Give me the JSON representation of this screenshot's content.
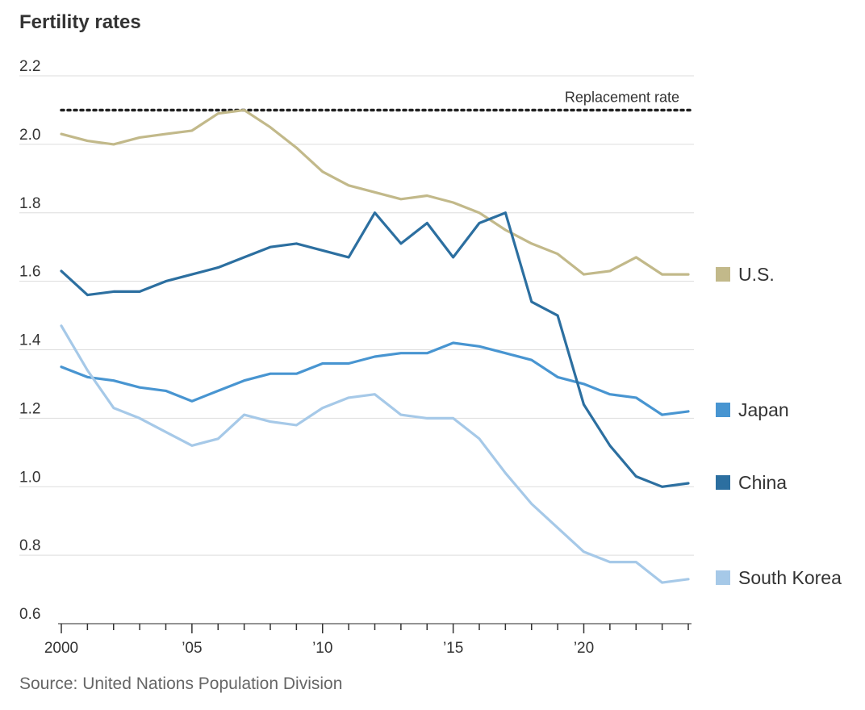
{
  "chart_data": {
    "type": "line",
    "title": "Fertility rates",
    "source": "Source: United Nations Population Division",
    "xlabel": "",
    "ylabel": "",
    "x": [
      2000,
      2001,
      2002,
      2003,
      2004,
      2005,
      2006,
      2007,
      2008,
      2009,
      2010,
      2011,
      2012,
      2013,
      2014,
      2015,
      2016,
      2017,
      2018,
      2019,
      2020,
      2021,
      2022,
      2023,
      2024
    ],
    "xlim": [
      2000,
      2024
    ],
    "ylim": [
      0.6,
      2.2
    ],
    "x_ticks": [
      {
        "value": 2000,
        "label": "2000"
      },
      {
        "value": 2005,
        "label": "’05"
      },
      {
        "value": 2010,
        "label": "’10"
      },
      {
        "value": 2015,
        "label": "’15"
      },
      {
        "value": 2020,
        "label": "’20"
      }
    ],
    "y_ticks": [
      {
        "value": 0.6,
        "label": "0.6"
      },
      {
        "value": 0.8,
        "label": "0.8"
      },
      {
        "value": 1.0,
        "label": "1.0"
      },
      {
        "value": 1.2,
        "label": "1.2"
      },
      {
        "value": 1.4,
        "label": "1.4"
      },
      {
        "value": 1.6,
        "label": "1.6"
      },
      {
        "value": 1.8,
        "label": "1.8"
      },
      {
        "value": 2.0,
        "label": "2.0"
      },
      {
        "value": 2.2,
        "label": "2.2"
      }
    ],
    "grid": true,
    "reference_line": {
      "value": 2.1,
      "label": "Replacement rate"
    },
    "legend_position": "right",
    "series": [
      {
        "name": "U.S.",
        "color": "#c2b98a",
        "values": [
          2.03,
          2.01,
          2.0,
          2.02,
          2.03,
          2.04,
          2.09,
          2.1,
          2.05,
          1.99,
          1.92,
          1.88,
          1.86,
          1.84,
          1.85,
          1.83,
          1.8,
          1.75,
          1.71,
          1.68,
          1.62,
          1.63,
          1.67,
          1.62,
          1.62
        ]
      },
      {
        "name": "Japan",
        "color": "#4895d1",
        "values": [
          1.35,
          1.32,
          1.31,
          1.29,
          1.28,
          1.25,
          1.28,
          1.31,
          1.33,
          1.33,
          1.36,
          1.36,
          1.38,
          1.39,
          1.39,
          1.42,
          1.41,
          1.39,
          1.37,
          1.32,
          1.3,
          1.27,
          1.26,
          1.21,
          1.22
        ]
      },
      {
        "name": "China",
        "color": "#2c6fa0",
        "values": [
          1.63,
          1.56,
          1.57,
          1.57,
          1.6,
          1.62,
          1.64,
          1.67,
          1.7,
          1.71,
          1.69,
          1.67,
          1.8,
          1.71,
          1.77,
          1.67,
          1.77,
          1.8,
          1.54,
          1.5,
          1.24,
          1.12,
          1.03,
          1.0,
          1.01
        ]
      },
      {
        "name": "South Korea",
        "color": "#a6c9e8",
        "values": [
          1.47,
          1.34,
          1.23,
          1.2,
          1.16,
          1.12,
          1.14,
          1.21,
          1.19,
          1.18,
          1.23,
          1.26,
          1.27,
          1.21,
          1.2,
          1.2,
          1.14,
          1.04,
          0.95,
          0.88,
          0.81,
          0.78,
          0.78,
          0.72,
          0.73
        ]
      }
    ]
  }
}
